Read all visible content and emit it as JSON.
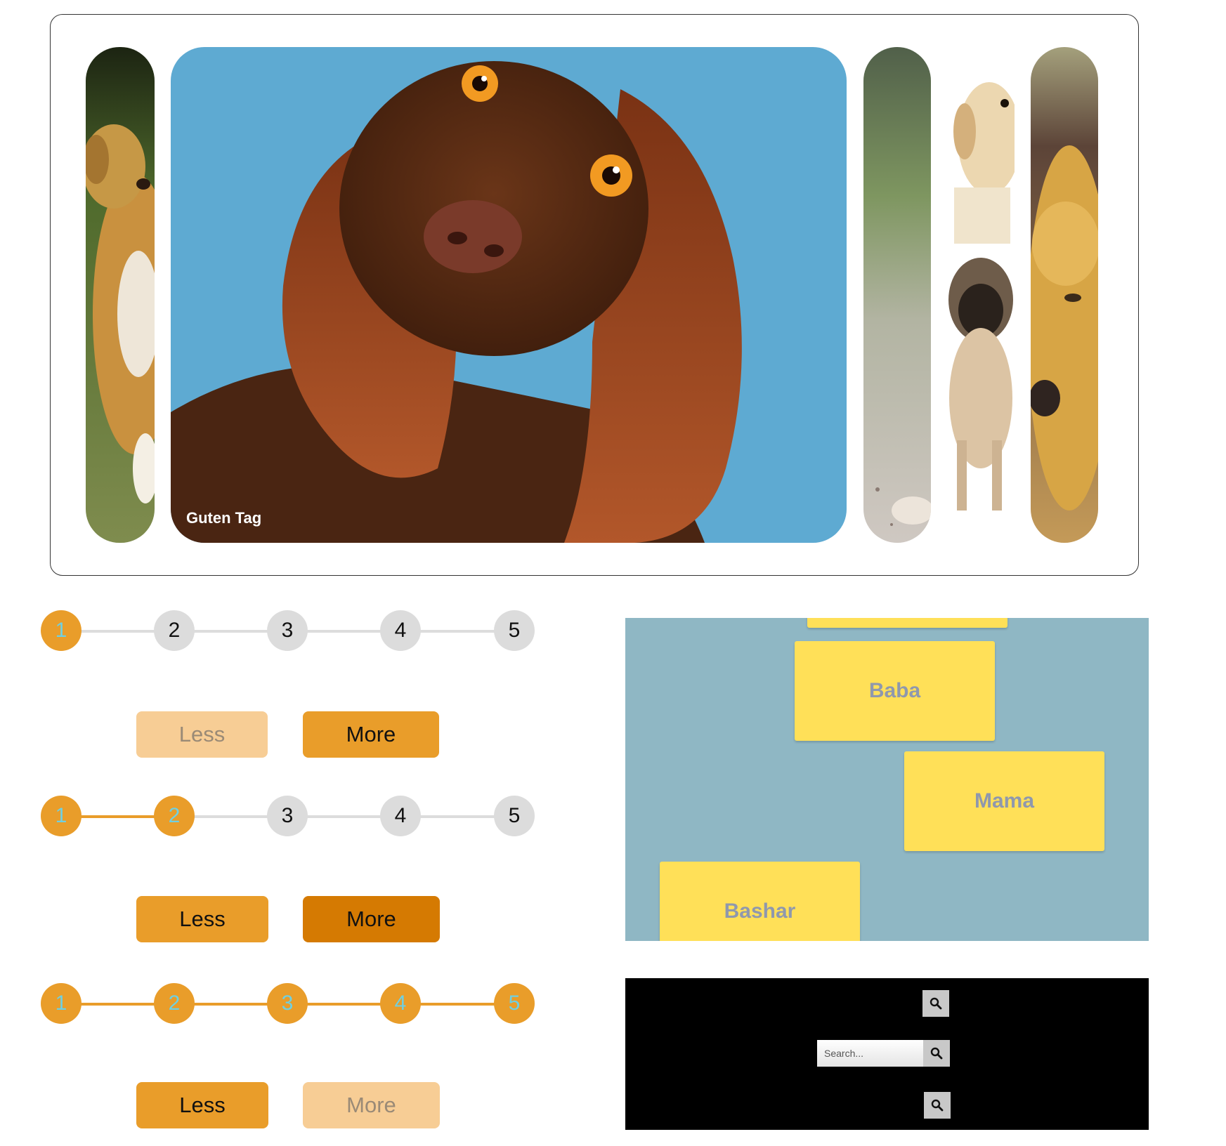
{
  "gallery": {
    "panels": [
      {
        "name": "golden-dog-running",
        "label": "",
        "expanded": false
      },
      {
        "name": "spaniel-blue-background",
        "label": "Guten Tag",
        "expanded": true
      },
      {
        "name": "dog-on-path",
        "label": "",
        "expanded": false
      },
      {
        "name": "labrador-and-pug",
        "label": "",
        "expanded": false
      },
      {
        "name": "golden-retriever",
        "label": "",
        "expanded": false
      }
    ]
  },
  "steppers": [
    {
      "steps": [
        "1",
        "2",
        "3",
        "4",
        "5"
      ],
      "active": 1,
      "less_label": "Less",
      "more_label": "More",
      "less_enabled": false,
      "more_enabled": true,
      "more_pressed": false
    },
    {
      "steps": [
        "1",
        "2",
        "3",
        "4",
        "5"
      ],
      "active": 2,
      "less_label": "Less",
      "more_label": "More",
      "less_enabled": true,
      "more_enabled": true,
      "more_pressed": true
    },
    {
      "steps": [
        "1",
        "2",
        "3",
        "4",
        "5"
      ],
      "active": 5,
      "less_label": "Less",
      "more_label": "More",
      "less_enabled": true,
      "more_enabled": false,
      "more_pressed": false
    }
  ],
  "cards": {
    "items": [
      "Baba",
      "Mama",
      "Bashar"
    ],
    "colors": {
      "background": "#8fb7c4",
      "card": "#ffe058",
      "text": "#8f98ad"
    }
  },
  "search": {
    "placeholder": "Search...",
    "icon": "magnifier-icon"
  },
  "colors": {
    "accent": "#e99d2a",
    "accent_light": "#f7cd95",
    "accent_dark": "#d57a02",
    "inactive_step": "#dcdcdc",
    "active_step_text": "#6fd0e2"
  }
}
